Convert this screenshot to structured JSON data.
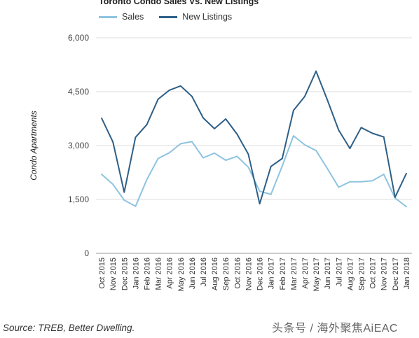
{
  "chart_data": {
    "type": "line",
    "title": "Toronto Condo Sales Vs. New Listings",
    "ylabel": "Condo Apartments",
    "xlabel": "",
    "ylim": [
      0,
      6000
    ],
    "y_ticks": [
      "0",
      "1,500",
      "3,000",
      "4,500",
      "6,000"
    ],
    "y_tick_values": [
      0,
      1500,
      3000,
      4500,
      6000
    ],
    "grid": true,
    "legend_position": "top-left",
    "categories": [
      "Oct 2015",
      "Nov 2015",
      "Dec 2015",
      "Jan 2016",
      "Feb 2016",
      "Mar 2016",
      "Apr 2016",
      "May 2016",
      "Jun 2016",
      "Jul 2016",
      "Aug 2016",
      "Sep 2016",
      "Oct 2016",
      "Nov 2016",
      "Dec 2016",
      "Jan 2017",
      "Feb 2017",
      "Mar 2017",
      "Apr 2017",
      "May 2017",
      "Jun 2017",
      "Jul 2017",
      "Aug 2017",
      "Sep 2017",
      "Oct 2017",
      "Nov 2017",
      "Dec 2017",
      "Jan 2018"
    ],
    "series": [
      {
        "name": "Sales",
        "color": "#8ec4e0",
        "values": [
          2200,
          1920,
          1480,
          1310,
          2050,
          2640,
          2800,
          3050,
          3110,
          2660,
          2790,
          2590,
          2700,
          2400,
          1730,
          1640,
          2430,
          3270,
          3020,
          2860,
          2360,
          1840,
          1990,
          1990,
          2020,
          2200,
          1540,
          1300
        ]
      },
      {
        "name": "New Listings",
        "color": "#2e5f86",
        "values": [
          3760,
          3100,
          1700,
          3230,
          3580,
          4290,
          4540,
          4660,
          4370,
          3770,
          3470,
          3740,
          3320,
          2760,
          1380,
          2420,
          2640,
          3980,
          4370,
          5070,
          4270,
          3430,
          2920,
          3500,
          3340,
          3240,
          1560,
          2220
        ]
      }
    ]
  },
  "source_text": "Source: TREB, Better Dwelling.",
  "watermark_text": "头条号 / 海外聚焦AiEAC"
}
